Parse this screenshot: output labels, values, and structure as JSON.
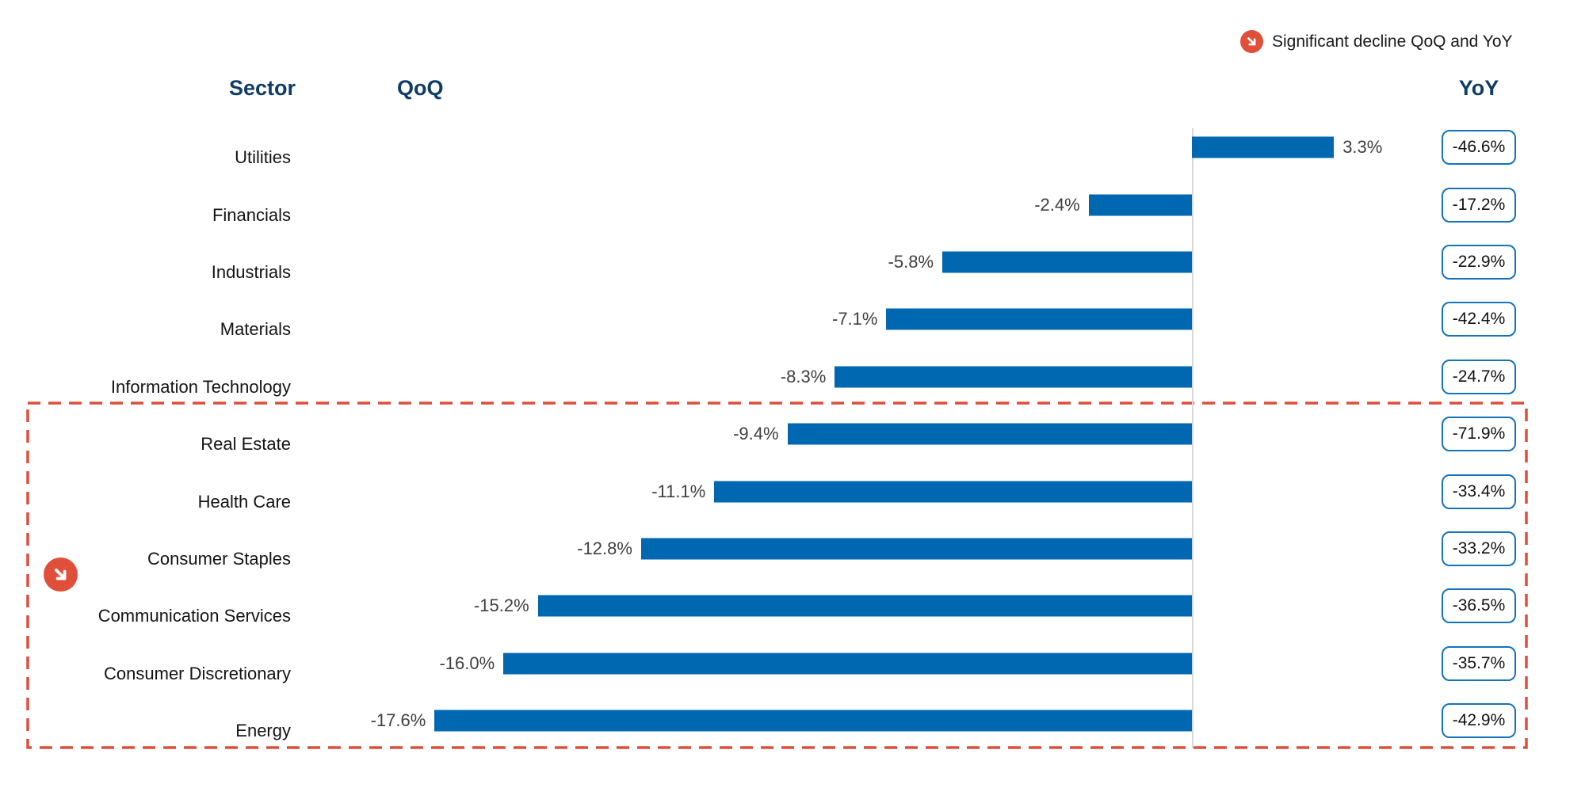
{
  "legend": {
    "text": "Significant decline QoQ and YoY",
    "icon": "arrow-down-right-icon"
  },
  "headers": {
    "sector": "Sector",
    "qoq": "QoQ",
    "yoy": "YoY"
  },
  "colors": {
    "bar_blue": "#0067b1",
    "header_navy": "#0f3d66",
    "accent_red": "#e04f39",
    "yoy_box_border": "#1673ba",
    "value_text": "#3f3f3f",
    "axis_line": "#d9d9d9"
  },
  "chart_data": {
    "type": "bar",
    "orientation": "horizontal",
    "title": "",
    "categories": [
      "Utilities",
      "Financials",
      "Industrials",
      "Materials",
      "Information Technology",
      "Real Estate",
      "Health Care",
      "Consumer Staples",
      "Communication Services",
      "Consumer Discretionary",
      "Energy"
    ],
    "series": [
      {
        "name": "QoQ",
        "unit": "%",
        "values": [
          3.3,
          -2.4,
          -5.8,
          -7.1,
          -8.3,
          -9.4,
          -11.1,
          -12.8,
          -15.2,
          -16.0,
          -17.6
        ]
      },
      {
        "name": "YoY",
        "unit": "%",
        "values": [
          -46.6,
          -17.2,
          -22.9,
          -42.4,
          -24.7,
          -71.9,
          -33.4,
          -33.2,
          -36.5,
          -35.7,
          -42.9
        ]
      }
    ],
    "axis": {
      "baseline": 0,
      "gridlines": false,
      "qoq_bars_drawn_from_zero_baseline": true
    },
    "legend_position": "top-right",
    "highlighted_categories": [
      "Real Estate",
      "Health Care",
      "Consumer Staples",
      "Communication Services",
      "Consumer Discretionary",
      "Energy"
    ],
    "highlight_meaning": "Significant decline QoQ and YoY"
  },
  "rows": [
    {
      "sector": "Utilities",
      "qoq": 3.3,
      "qoq_label": "3.3%",
      "yoy_label": "-46.6%",
      "highlighted": false
    },
    {
      "sector": "Financials",
      "qoq": -2.4,
      "qoq_label": "-2.4%",
      "yoy_label": "-17.2%",
      "highlighted": false
    },
    {
      "sector": "Industrials",
      "qoq": -5.8,
      "qoq_label": "-5.8%",
      "yoy_label": "-22.9%",
      "highlighted": false
    },
    {
      "sector": "Materials",
      "qoq": -7.1,
      "qoq_label": "-7.1%",
      "yoy_label": "-42.4%",
      "highlighted": false
    },
    {
      "sector": "Information Technology",
      "qoq": -8.3,
      "qoq_label": "-8.3%",
      "yoy_label": "-24.7%",
      "highlighted": false
    },
    {
      "sector": "Real Estate",
      "qoq": -9.4,
      "qoq_label": "-9.4%",
      "yoy_label": "-71.9%",
      "highlighted": true
    },
    {
      "sector": "Health Care",
      "qoq": -11.1,
      "qoq_label": "-11.1%",
      "yoy_label": "-33.4%",
      "highlighted": true
    },
    {
      "sector": "Consumer Staples",
      "qoq": -12.8,
      "qoq_label": "-12.8%",
      "yoy_label": "-33.2%",
      "highlighted": true
    },
    {
      "sector": "Communication Services",
      "qoq": -15.2,
      "qoq_label": "-15.2%",
      "yoy_label": "-36.5%",
      "highlighted": true
    },
    {
      "sector": "Consumer Discretionary",
      "qoq": -16.0,
      "qoq_label": "-16.0%",
      "yoy_label": "-35.7%",
      "highlighted": true
    },
    {
      "sector": "Energy",
      "qoq": -17.6,
      "qoq_label": "-17.6%",
      "yoy_label": "-42.9%",
      "highlighted": true
    }
  ]
}
